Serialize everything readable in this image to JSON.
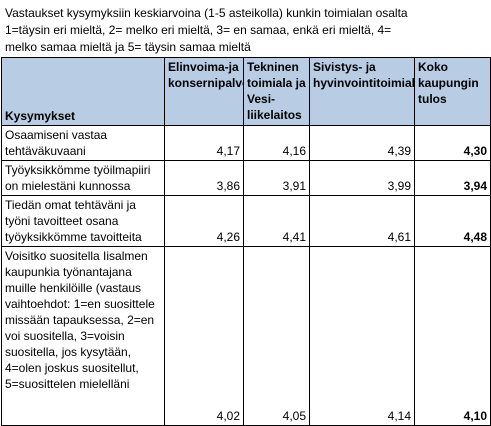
{
  "intro": {
    "line1": "Vastaukset kysymyksiin keskiarvoina (1-5 asteikolla) kunkin toimialan osalta",
    "line2": "1=täysin eri mieltä, 2= melko eri mieltä, 3= en samaa, enkä eri mieltä, 4=",
    "line3": "melko samaa mieltä ja 5= täysin samaa mieltä"
  },
  "table": {
    "headers": [
      "Kysymykset",
      "Elinvoima-ja konsernipalvelut",
      "Tekninen toimiala ja Vesi-liikelaitos",
      "Sivistys- ja hyvinvointitoimiala",
      "Koko kaupungin tulos"
    ],
    "rows": [
      {
        "question": "Osaamiseni vastaa tehtäväkuvaani",
        "values": [
          "4,17",
          "4,16",
          "4,39",
          "4,30"
        ]
      },
      {
        "question": "Työyksikkömme työilmapiiri on mielestäni kunnossa",
        "values": [
          "3,86",
          "3,91",
          "3,99",
          "3,94"
        ]
      },
      {
        "question": "Tiedän omat tehtäväni ja työni tavoitteet osana työyksikkömme tavoitteita",
        "values": [
          "4,26",
          "4,41",
          "4,61",
          "4,48"
        ]
      },
      {
        "question": "Voisitko suositella Iisalmen kaupunkia työnantajana muille henkilöille (vastaus vaihtoehdot: 1=en suosittele missään tapauksessa, 2=en voi suositella, 3=voisin suositella, jos kysytään, 4=olen joskus suositellut, 5=suosittelen mielelläni",
        "values": [
          "4,02",
          "4,05",
          "4,14",
          "4,10"
        ]
      }
    ]
  },
  "colors": {
    "header_bg": "#b8cce4",
    "border": "#000000"
  }
}
